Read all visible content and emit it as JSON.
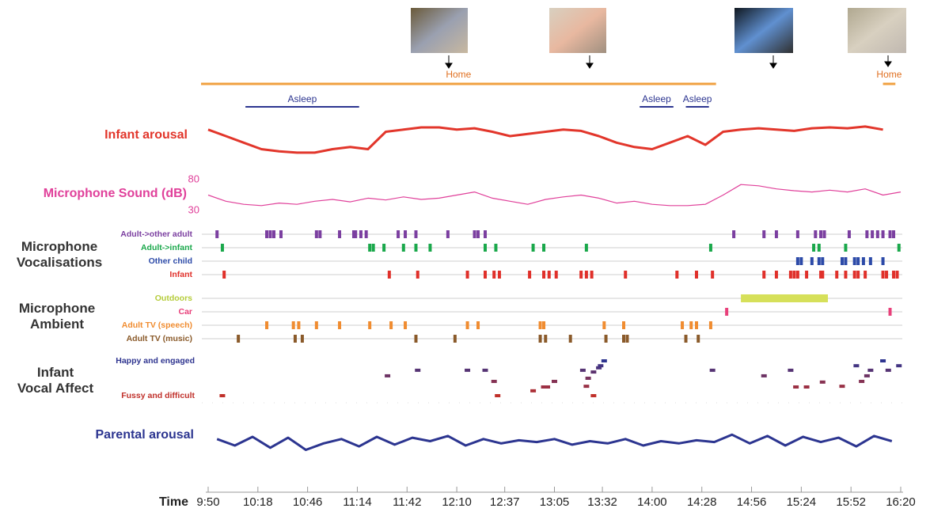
{
  "chart_data": {
    "type": "timeline",
    "x_label": "Time",
    "xlim": [
      590,
      980
    ],
    "xticks": [
      {
        "value": 590,
        "label": "9:50"
      },
      {
        "value": 618,
        "label": "10:18"
      },
      {
        "value": 646,
        "label": "10:46"
      },
      {
        "value": 674,
        "label": "11:14"
      },
      {
        "value": 702,
        "label": "11:42"
      },
      {
        "value": 730,
        "label": "12:10"
      },
      {
        "value": 757,
        "label": "12:37"
      },
      {
        "value": 785,
        "label": "13:05"
      },
      {
        "value": 812,
        "label": "13:32"
      },
      {
        "value": 840,
        "label": "14:00"
      },
      {
        "value": 868,
        "label": "14:28"
      },
      {
        "value": 896,
        "label": "14:56"
      },
      {
        "value": 924,
        "label": "15:24"
      },
      {
        "value": 952,
        "label": "15:52"
      },
      {
        "value": 980,
        "label": "16:20"
      }
    ],
    "location": [
      {
        "label": "Home",
        "start": 586,
        "end": 876,
        "color": "#f0a040"
      },
      {
        "label": "Home",
        "start": 970,
        "end": 977,
        "color": "#f0a040"
      }
    ],
    "sleep": [
      {
        "label": "Asleep",
        "start": 611,
        "end": 675,
        "color": "#2c3590"
      },
      {
        "label": "Asleep",
        "start": 833,
        "end": 852,
        "color": "#2c3590"
      },
      {
        "label": "Asleep",
        "start": 859,
        "end": 872,
        "color": "#2c3590"
      }
    ],
    "signals": [
      {
        "name": "Infant arousal",
        "color": "#e2362b",
        "ylim": [
          0,
          100
        ],
        "x": [
          590,
          600,
          610,
          620,
          630,
          640,
          650,
          660,
          670,
          680,
          690,
          700,
          710,
          720,
          730,
          740,
          750,
          760,
          770,
          780,
          790,
          800,
          810,
          820,
          830,
          840,
          850,
          860,
          870,
          880,
          890,
          900,
          910,
          920,
          930,
          940,
          950,
          960,
          970
        ],
        "values": [
          75,
          60,
          45,
          30,
          25,
          22,
          22,
          30,
          35,
          30,
          70,
          75,
          80,
          80,
          75,
          78,
          70,
          60,
          65,
          70,
          75,
          72,
          60,
          45,
          35,
          30,
          45,
          60,
          40,
          70,
          75,
          78,
          75,
          72,
          78,
          80,
          78,
          82,
          75
        ]
      },
      {
        "name": "Microphone Sound (dB)",
        "color": "#e0409a",
        "ylim": [
          30,
          80
        ],
        "yticks": [
          30,
          80
        ],
        "x": [
          590,
          600,
          610,
          620,
          630,
          640,
          650,
          660,
          670,
          680,
          690,
          700,
          710,
          720,
          730,
          740,
          750,
          760,
          770,
          780,
          790,
          800,
          810,
          820,
          830,
          840,
          850,
          860,
          870,
          880,
          890,
          900,
          910,
          920,
          930,
          940,
          950,
          960,
          970,
          980
        ],
        "values": [
          55,
          45,
          40,
          38,
          42,
          40,
          45,
          48,
          44,
          50,
          47,
          52,
          48,
          50,
          55,
          60,
          50,
          45,
          40,
          48,
          52,
          55,
          50,
          42,
          45,
          40,
          38,
          38,
          40,
          55,
          72,
          70,
          65,
          62,
          60,
          63,
          60,
          65,
          55,
          60
        ]
      },
      {
        "name": "Parental arousal",
        "color": "#2c3590",
        "ylim": [
          0,
          100
        ],
        "x": [
          595,
          605,
          615,
          625,
          635,
          645,
          655,
          665,
          675,
          685,
          695,
          705,
          715,
          725,
          735,
          745,
          755,
          765,
          775,
          785,
          795,
          805,
          815,
          825,
          835,
          845,
          855,
          865,
          875,
          885,
          895,
          905,
          915,
          925,
          935,
          945,
          955,
          965,
          975
        ],
        "values": [
          55,
          40,
          60,
          35,
          58,
          30,
          45,
          55,
          38,
          60,
          42,
          58,
          50,
          62,
          40,
          55,
          45,
          52,
          48,
          55,
          42,
          50,
          45,
          55,
          40,
          50,
          45,
          52,
          48,
          65,
          45,
          62,
          40,
          60,
          48,
          58,
          38,
          62,
          50
        ]
      }
    ],
    "event_groups": [
      {
        "name": "Microphone Vocalisations",
        "rows": [
          {
            "name": "Adult->other adult",
            "color": "#7b3fa0",
            "times": [
              595,
              623,
              625,
              627,
              631,
              651,
              653,
              664,
              672,
              673,
              676,
              679,
              697,
              701,
              707,
              725,
              740,
              742,
              746,
              886,
              903,
              910,
              922,
              932,
              935,
              937,
              951,
              961,
              964,
              967,
              970,
              974,
              976
            ]
          },
          {
            "name": "Adult->infant",
            "color": "#1aa84b",
            "times": [
              598,
              681,
              683,
              689,
              700,
              707,
              715,
              746,
              752,
              773,
              779,
              803,
              873,
              931,
              934,
              949,
              979
            ]
          },
          {
            "name": "Other child",
            "color": "#2c4aa8",
            "times": [
              922,
              924,
              930,
              934,
              936,
              947,
              949,
              954,
              956,
              959,
              963,
              970
            ]
          },
          {
            "name": "Infant",
            "color": "#e0302a",
            "times": [
              599,
              692,
              708,
              736,
              746,
              751,
              754,
              771,
              779,
              782,
              786,
              800,
              803,
              806,
              825,
              854,
              865,
              874,
              903,
              910,
              918,
              920,
              922,
              927,
              935,
              936,
              944,
              949,
              954,
              956,
              960,
              970,
              972,
              976,
              978
            ]
          }
        ]
      },
      {
        "name": "Microphone Ambient",
        "rows": [
          {
            "name": "Outdoors",
            "color": "#b5cc3a",
            "bar_color": "#d6e05a",
            "intervals": [
              [
                890,
                939
              ]
            ]
          },
          {
            "name": "Car",
            "color": "#e8407a",
            "times": [
              882,
              974
            ]
          },
          {
            "name": "Adult TV (speech)",
            "color": "#f08c30",
            "times": [
              623,
              638,
              641,
              651,
              664,
              681,
              693,
              701,
              736,
              742,
              777,
              779,
              813,
              824,
              857,
              862,
              865,
              873
            ]
          },
          {
            "name": "Adult TV (music)",
            "color": "#8a5a2a",
            "times": [
              607,
              639,
              643,
              707,
              729,
              777,
              780,
              794,
              814,
              824,
              826,
              859,
              866
            ]
          }
        ]
      }
    ],
    "affect": {
      "name": "Infant Vocal Affect",
      "ylim": [
        0,
        1
      ],
      "yticks": [
        {
          "value": 1,
          "label": "Happy and engaged"
        },
        {
          "value": 0,
          "label": "Fussy and difficult"
        }
      ],
      "colors": [
        "#c0302a",
        "#2f3590"
      ],
      "x": [
        598,
        691,
        708,
        736,
        746,
        751,
        753,
        773,
        779,
        781,
        785,
        801,
        803,
        804,
        807,
        810,
        811,
        813,
        807,
        874,
        903,
        918,
        921,
        927,
        936,
        947,
        955,
        958,
        961,
        963,
        970,
        973,
        979
      ],
      "values": [
        0,
        0.57,
        0.73,
        0.73,
        0.73,
        0.41,
        0,
        0.14,
        0.25,
        0.25,
        0.41,
        0.73,
        0.27,
        0.5,
        0.68,
        0.8,
        0.86,
        1,
        0,
        0.73,
        0.57,
        0.73,
        0.25,
        0.25,
        0.39,
        0.27,
        0.86,
        0.41,
        0.57,
        0.73,
        1,
        0.73,
        0.86
      ]
    }
  }
}
